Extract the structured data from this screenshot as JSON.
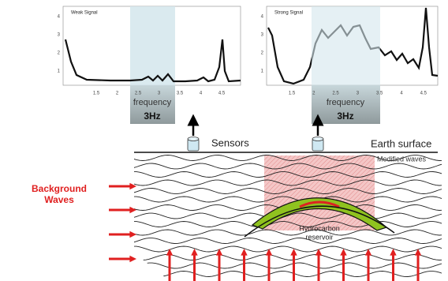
{
  "plots": [
    {
      "title": "Weak Signal",
      "yticks": [
        "1",
        "2",
        "3",
        "4"
      ],
      "xticks": [
        "1.5",
        "2",
        "2.5",
        "3",
        "3.5",
        "4",
        "4.5"
      ],
      "band_label": "frequency",
      "band_value": "3Hz"
    },
    {
      "title": "Strong Signal",
      "yticks": [
        "1",
        "2",
        "3",
        "4"
      ],
      "xticks": [
        "1.5",
        "2",
        "2.5",
        "3",
        "3.5",
        "4",
        "4.5"
      ],
      "band_label": "frequency",
      "band_value": "3Hz"
    }
  ],
  "labels": {
    "sensors": "Sensors",
    "earth_surface": "Earth surface",
    "modified_waves": "Modified waves",
    "background_waves": [
      "Background",
      "Waves"
    ],
    "reservoir": [
      "Hydrocarbon",
      "reservoir"
    ]
  }
}
